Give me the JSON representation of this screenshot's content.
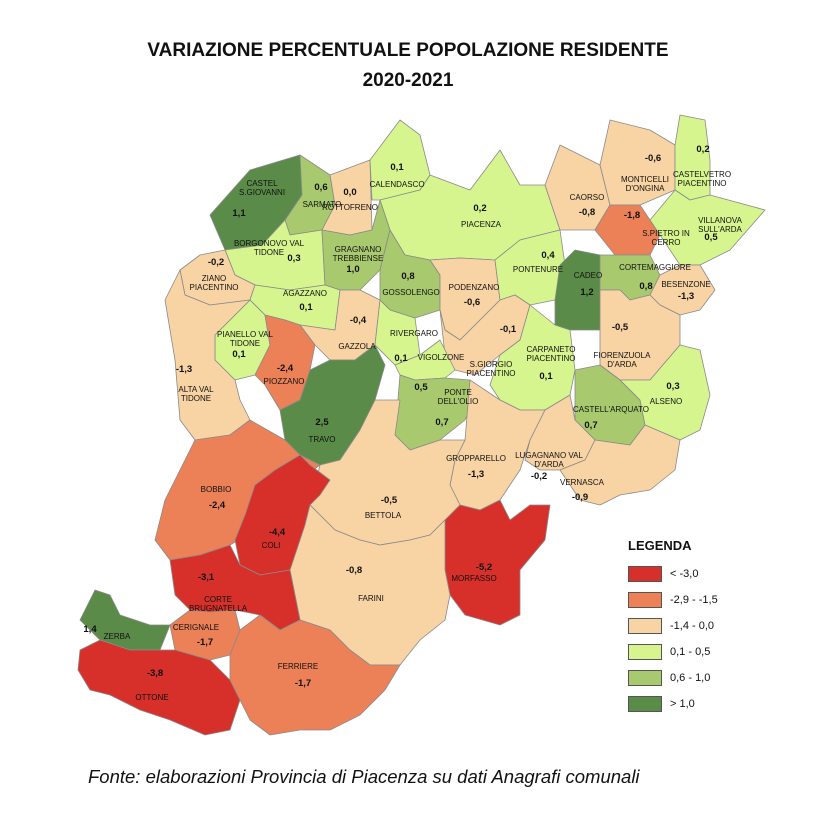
{
  "title_line1": "VARIAZIONE PERCENTUALE POPOLAZIONE RESIDENTE",
  "title_line2": "2020-2021",
  "legend": {
    "title": "LEGENDA",
    "classes": [
      {
        "label": "< -3,0",
        "color": "#d7302b"
      },
      {
        "label": "-2,9 - -1,5",
        "color": "#ec8158"
      },
      {
        "label": "-1,4 - 0,0",
        "color": "#f8d3a4"
      },
      {
        "label": "0,1 - 0,5",
        "color": "#d6f58e"
      },
      {
        "label": "0,6 - 1,0",
        "color": "#a8c96e"
      },
      {
        "label": "> 1,0",
        "color": "#5b8b48"
      }
    ]
  },
  "source": "Fonte: elaborazioni Provincia di Piacenza su dati Anagrafi comunali",
  "municipalities": [
    {
      "name": "CASTEL S.GIOVANNI",
      "value": "1,1",
      "class": 5
    },
    {
      "name": "SARMATO",
      "value": "0,6",
      "class": 4
    },
    {
      "name": "ROTTOFRENO",
      "value": "0,0",
      "class": 2
    },
    {
      "name": "CALENDASCO",
      "value": "0,1",
      "class": 3
    },
    {
      "name": "PIACENZA",
      "value": "0,2",
      "class": 3
    },
    {
      "name": "CAORSO",
      "value": "-0,8",
      "class": 2
    },
    {
      "name": "MONTICELLI D'ONGINA",
      "value": "-0,6",
      "class": 2
    },
    {
      "name": "CASTELVETRO PIACENTINO",
      "value": "0,2",
      "class": 3
    },
    {
      "name": "S.PIETRO IN CERRO",
      "value": "-1,8",
      "class": 1
    },
    {
      "name": "VILLANOVA SULL'ARDA",
      "value": "0,5",
      "class": 3
    },
    {
      "name": "BORGONOVO VAL TIDONE",
      "value": "0,3",
      "class": 3
    },
    {
      "name": "GRAGNANO TREBBIENSE",
      "value": "1,0",
      "class": 4
    },
    {
      "name": "ZIANO PIACENTINO",
      "value": "-0,2",
      "class": 2
    },
    {
      "name": "AGAZZANO",
      "value": "0,1",
      "class": 3
    },
    {
      "name": "GOSSOLENGO",
      "value": "0,8",
      "class": 4
    },
    {
      "name": "PODENZANO",
      "value": "-0,6",
      "class": 2
    },
    {
      "name": "PONTENURE",
      "value": "0,4",
      "class": 3
    },
    {
      "name": "CADEO",
      "value": "1,2",
      "class": 5
    },
    {
      "name": "CORTEMAGGIORE",
      "value": "0,8",
      "class": 4
    },
    {
      "name": "BESENZONE",
      "value": "-1,3",
      "class": 2
    },
    {
      "name": "PIANELLO VAL TIDONE",
      "value": "0,1",
      "class": 3
    },
    {
      "name": "GAZZOLA",
      "value": "-0,4",
      "class": 2
    },
    {
      "name": "RIVERGARO",
      "value": "0,1",
      "class": 3
    },
    {
      "name": "S.GIORGIO PIACENTINO",
      "value": "-0,1",
      "class": 2
    },
    {
      "name": "FIORENZUOLA D'ARDA",
      "value": "-0,5",
      "class": 2
    },
    {
      "name": "ALTA VAL TIDONE",
      "value": "-1,3",
      "class": 2
    },
    {
      "name": "PIOZZANO",
      "value": "-2,4",
      "class": 1
    },
    {
      "name": "VIGOLZONE",
      "value": "0,5",
      "class": 3
    },
    {
      "name": "CARPANETO PIACENTINO",
      "value": "0,1",
      "class": 3
    },
    {
      "name": "PONTE DELL'OLIO",
      "value": "0,7",
      "class": 4
    },
    {
      "name": "CASTELL'ARQUATO",
      "value": "0,7",
      "class": 4
    },
    {
      "name": "ALSENO",
      "value": "0,3",
      "class": 3
    },
    {
      "name": "TRAVO",
      "value": "2,5",
      "class": 5
    },
    {
      "name": "GROPPARELLO",
      "value": "-1,3",
      "class": 2
    },
    {
      "name": "LUGAGNANO VAL D'ARDA",
      "value": "-0,2",
      "class": 2
    },
    {
      "name": "VERNASCA",
      "value": "-0,9",
      "class": 2
    },
    {
      "name": "BOBBIO",
      "value": "-2,4",
      "class": 1
    },
    {
      "name": "BETTOLA",
      "value": "-0,5",
      "class": 2
    },
    {
      "name": "COLI",
      "value": "-4,4",
      "class": 0
    },
    {
      "name": "MORFASSO",
      "value": "-5,2",
      "class": 0
    },
    {
      "name": "FARINI",
      "value": "-0,8",
      "class": 2
    },
    {
      "name": "CORTE BRUGNATELLA",
      "value": "-3,1",
      "class": 0
    },
    {
      "name": "ZERBA",
      "value": "1,4",
      "class": 5
    },
    {
      "name": "CERIGNALE",
      "value": "-1,7",
      "class": 1
    },
    {
      "name": "OTTONE",
      "value": "-3,8",
      "class": 0
    },
    {
      "name": "FERRIERE",
      "value": "-1,7",
      "class": 1
    }
  ]
}
